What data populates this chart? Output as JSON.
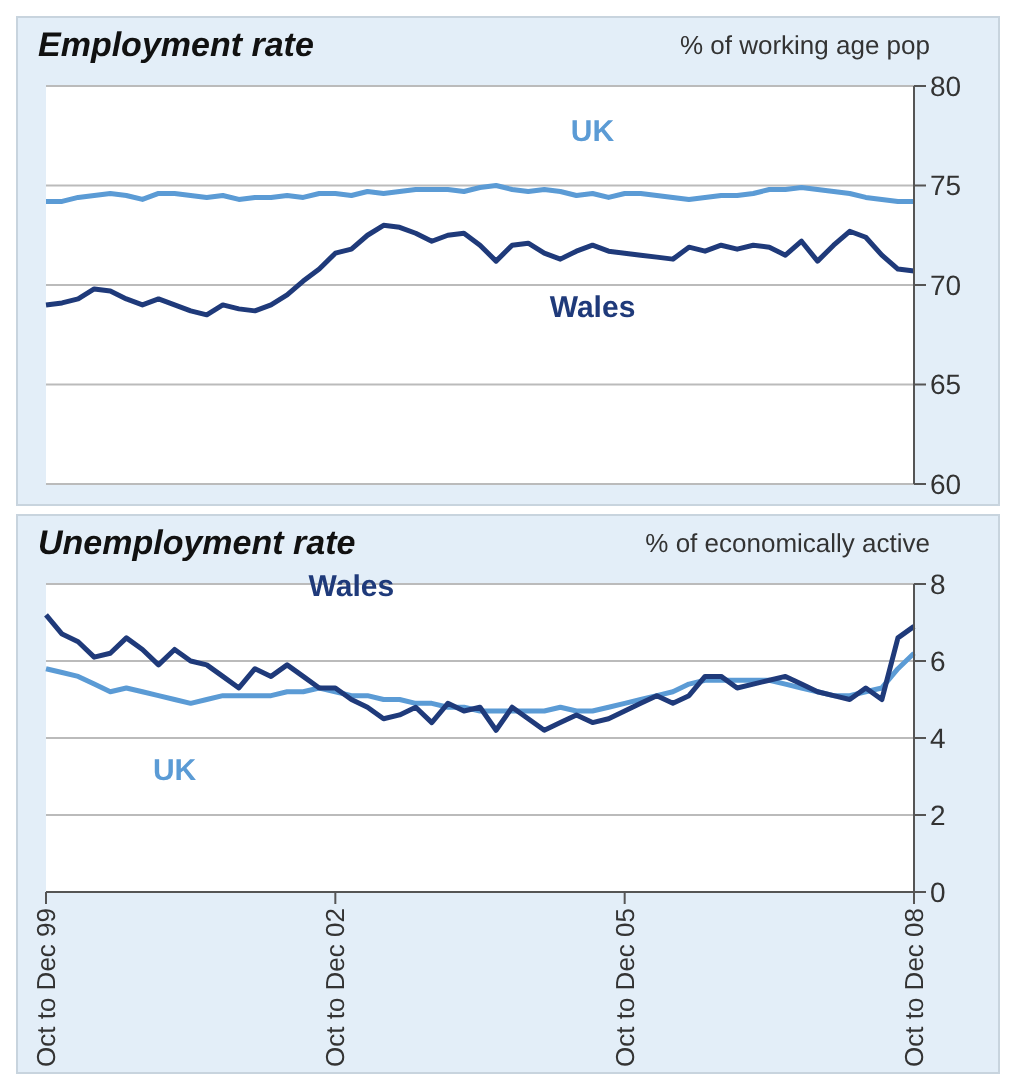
{
  "chart_data": [
    {
      "type": "line",
      "title": "Employment rate",
      "ylabel": "% of working age pop",
      "categories": [
        null,
        null,
        null,
        null,
        null,
        null,
        null,
        null,
        null,
        null,
        null,
        null,
        null,
        null,
        null,
        null,
        null,
        null,
        null,
        null,
        null,
        null,
        null,
        null,
        null,
        null,
        null,
        null,
        null,
        null,
        null,
        null,
        null,
        null,
        null,
        null,
        null,
        null,
        null,
        null,
        null,
        null,
        null,
        null,
        null,
        null,
        null,
        null,
        null,
        null,
        null,
        null,
        null,
        null,
        null
      ],
      "series": [
        {
          "name": "UK",
          "color": "#5b9bd5",
          "values": [
            74.2,
            74.2,
            74.4,
            74.5,
            74.6,
            74.5,
            74.3,
            74.6,
            74.6,
            74.5,
            74.4,
            74.5,
            74.3,
            74.4,
            74.4,
            74.5,
            74.4,
            74.6,
            74.6,
            74.5,
            74.7,
            74.6,
            74.7,
            74.8,
            74.8,
            74.8,
            74.7,
            74.9,
            75.0,
            74.8,
            74.7,
            74.8,
            74.7,
            74.5,
            74.6,
            74.4,
            74.6,
            74.6,
            74.5,
            74.4,
            74.3,
            74.4,
            74.5,
            74.5,
            74.6,
            74.8,
            74.8,
            74.9,
            74.8,
            74.7,
            74.6,
            74.4,
            74.3,
            74.2,
            74.2
          ]
        },
        {
          "name": "Wales",
          "color": "#1f3a7a",
          "values": [
            69.0,
            69.1,
            69.3,
            69.8,
            69.7,
            69.3,
            69.0,
            69.3,
            69.0,
            68.7,
            68.5,
            69.0,
            68.8,
            68.7,
            69.0,
            69.5,
            70.2,
            70.8,
            71.6,
            71.8,
            72.5,
            73.0,
            72.9,
            72.6,
            72.2,
            72.5,
            72.6,
            72.0,
            71.2,
            72.0,
            72.1,
            71.6,
            71.3,
            71.7,
            72.0,
            71.7,
            71.6,
            71.5,
            71.4,
            71.3,
            71.9,
            71.7,
            72.0,
            71.8,
            72.0,
            71.9,
            71.5,
            72.2,
            71.2,
            72.0,
            72.7,
            72.4,
            71.5,
            70.8,
            70.7
          ]
        }
      ],
      "ylim": [
        60,
        80
      ],
      "yticks": [
        60,
        65,
        70,
        75,
        80
      ],
      "grid": "y",
      "tick_labels": "y",
      "legend": false,
      "marker": "none",
      "line_style": "solid"
    },
    {
      "type": "line",
      "title": "Unemployment rate",
      "ylabel": "% of economically active",
      "categories": [
        "Oct to Dec 99",
        null,
        null,
        null,
        null,
        null,
        null,
        null,
        null,
        null,
        null,
        null,
        null,
        null,
        null,
        null,
        null,
        null,
        "Oct to Dec 02",
        null,
        null,
        null,
        null,
        null,
        null,
        null,
        null,
        null,
        null,
        null,
        null,
        null,
        null,
        null,
        null,
        null,
        "Oct to Dec 05",
        null,
        null,
        null,
        null,
        null,
        null,
        null,
        null,
        null,
        null,
        null,
        null,
        null,
        null,
        null,
        null,
        null,
        "Oct to Dec 08"
      ],
      "series": [
        {
          "name": "UK",
          "color": "#5b9bd5",
          "values": [
            5.8,
            5.7,
            5.6,
            5.4,
            5.2,
            5.3,
            5.2,
            5.1,
            5.0,
            4.9,
            5.0,
            5.1,
            5.1,
            5.1,
            5.1,
            5.2,
            5.2,
            5.3,
            5.2,
            5.1,
            5.1,
            5.0,
            5.0,
            4.9,
            4.9,
            4.8,
            4.8,
            4.7,
            4.7,
            4.7,
            4.7,
            4.7,
            4.8,
            4.7,
            4.7,
            4.8,
            4.9,
            5.0,
            5.1,
            5.2,
            5.4,
            5.5,
            5.5,
            5.5,
            5.5,
            5.5,
            5.4,
            5.3,
            5.2,
            5.1,
            5.1,
            5.2,
            5.3,
            5.8,
            6.2
          ]
        },
        {
          "name": "Wales",
          "color": "#1f3a7a",
          "values": [
            7.2,
            6.7,
            6.5,
            6.1,
            6.2,
            6.6,
            6.3,
            5.9,
            6.3,
            6.0,
            5.9,
            5.6,
            5.3,
            5.8,
            5.6,
            5.9,
            5.6,
            5.3,
            5.3,
            5.0,
            4.8,
            4.5,
            4.6,
            4.8,
            4.4,
            4.9,
            4.7,
            4.8,
            4.2,
            4.8,
            4.5,
            4.2,
            4.4,
            4.6,
            4.4,
            4.5,
            4.7,
            4.9,
            5.1,
            4.9,
            5.1,
            5.6,
            5.6,
            5.3,
            5.4,
            5.5,
            5.6,
            5.4,
            5.2,
            5.1,
            5.0,
            5.3,
            5.0,
            6.6,
            6.9
          ]
        }
      ],
      "ylim": [
        0,
        8
      ],
      "yticks": [
        0,
        2,
        4,
        6,
        8
      ],
      "grid": "y",
      "legend": false,
      "marker": "none",
      "line_style": "solid"
    }
  ]
}
